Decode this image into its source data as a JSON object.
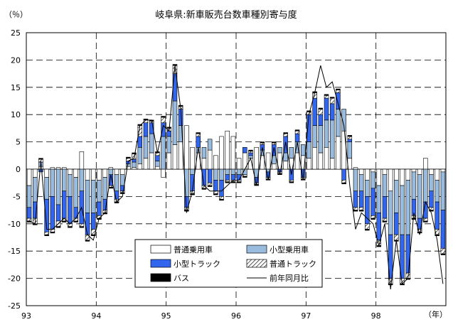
{
  "chart_data": {
    "type": "bar",
    "title": "岐阜県:新車販売台数車種別寄与度",
    "ylabel": "（％）",
    "xlabel": "（年）",
    "ylim": [
      -25,
      25
    ],
    "yticks": [
      25,
      20,
      15,
      10,
      5,
      0,
      -5,
      -10,
      -15,
      -20,
      -25
    ],
    "year_labels": [
      "93",
      "94",
      "95",
      "96",
      "97",
      "98"
    ],
    "grid": true,
    "stacked": true,
    "legend_position": "bottom-center",
    "series": [
      {
        "name": "普通乗用車",
        "key": "pass_std",
        "fill": "#ffffff",
        "pattern": "none"
      },
      {
        "name": "小型乗用車",
        "key": "pass_small",
        "fill": "#99bbdd",
        "pattern": "none"
      },
      {
        "name": "小型トラック",
        "key": "truck_small",
        "fill": "#3366ee",
        "pattern": "none"
      },
      {
        "name": "普通トラック",
        "key": "truck_std",
        "fill": "#ffffff",
        "pattern": "hatch"
      },
      {
        "name": "バス",
        "key": "bus",
        "fill": "#000000",
        "pattern": "none"
      },
      {
        "name": "前年同月比",
        "key": "yoy",
        "type": "line",
        "color": "#000000"
      }
    ],
    "months": [
      "93-01",
      "93-02",
      "93-03",
      "93-04",
      "93-05",
      "93-06",
      "93-07",
      "93-08",
      "93-09",
      "93-10",
      "93-11",
      "93-12",
      "94-01",
      "94-02",
      "94-03",
      "94-04",
      "94-05",
      "94-06",
      "94-07",
      "94-08",
      "94-09",
      "94-10",
      "94-11",
      "94-12",
      "95-01",
      "95-02",
      "95-03",
      "95-04",
      "95-05",
      "95-06",
      "95-07",
      "95-08",
      "95-09",
      "95-10",
      "95-11",
      "95-12",
      "96-01",
      "96-02",
      "96-03",
      "96-04",
      "96-05",
      "96-06",
      "96-07",
      "96-08",
      "96-09",
      "96-10",
      "96-11",
      "96-12",
      "97-01",
      "97-02",
      "97-03",
      "97-04",
      "97-05",
      "97-06",
      "97-07",
      "97-08",
      "97-09",
      "97-10",
      "97-11",
      "97-12",
      "98-01",
      "98-02",
      "98-03",
      "98-04",
      "98-05",
      "98-06",
      "98-07",
      "98-08",
      "98-09",
      "98-10",
      "98-11",
      "98-12"
    ],
    "pass_std": [
      -3,
      -1.5,
      0.5,
      -1.5,
      0.3,
      0.3,
      0.3,
      -1,
      -1.5,
      3.2,
      -2,
      -2,
      -2,
      -1.5,
      0.3,
      -1,
      -1,
      0.5,
      0.3,
      1,
      2,
      3,
      0.5,
      -1.5,
      3,
      4.5,
      5,
      8,
      4,
      3,
      2,
      3.5,
      2.5,
      6,
      7,
      6,
      2,
      3,
      2,
      4,
      2.5,
      3,
      1,
      3,
      1.5,
      2,
      3,
      2.5,
      2,
      4,
      3,
      4,
      2,
      6,
      7,
      2,
      0.3,
      -1,
      -2,
      -0.5,
      -3,
      -1,
      -4,
      -2,
      -3,
      -2,
      -0.5,
      -1,
      2,
      -1,
      -2,
      -0.5
    ],
    "pass_small": [
      -4,
      -4.5,
      0.8,
      -4,
      -5,
      -6.5,
      -4,
      -4,
      -5.5,
      -4,
      -6,
      -6,
      -4,
      -4,
      -1,
      -3,
      -2,
      0.5,
      1,
      3,
      4,
      3.5,
      1,
      6,
      3,
      8,
      3,
      -5,
      -1,
      1,
      2,
      2,
      -2,
      -2,
      -1,
      -1,
      -1,
      -1,
      0.5,
      -1.5,
      1,
      -0.5,
      1.5,
      1,
      1.5,
      2,
      2,
      2,
      3,
      4,
      5,
      5,
      7,
      5,
      4,
      3,
      -4,
      -3,
      -3,
      -3,
      -5,
      -4,
      -8,
      -6,
      -9,
      -10,
      -5,
      -8,
      -6,
      -3,
      -4,
      -7
    ],
    "truck_small": [
      -2,
      -3,
      -0.5,
      -6,
      -6,
      -3,
      -5,
      -5,
      -2,
      -6,
      -4,
      -3,
      -2.5,
      -2,
      -2,
      -1.5,
      -1,
      0.5,
      0.5,
      2,
      2.5,
      2,
      1,
      2.5,
      1,
      5,
      3,
      -2,
      -3,
      2,
      -3,
      -2.5,
      -2,
      -3,
      -1,
      -1,
      -1,
      1,
      0.5,
      -1,
      1,
      -1,
      2,
      -0.5,
      3,
      -2,
      1.5,
      -1.5,
      5,
      5,
      2,
      4,
      3,
      3,
      -2,
      0.5,
      -3,
      -3,
      -5,
      -5,
      -5,
      -4,
      -8,
      -4,
      -8,
      -7,
      -3,
      -2,
      -3,
      -3,
      -5,
      -7
    ],
    "truck_std": [
      -0.5,
      -1,
      0.5,
      -0.5,
      -0.5,
      -1,
      -0.5,
      -0.5,
      -0.5,
      -0.5,
      -1,
      -1,
      -0.5,
      -0.5,
      -0.3,
      -0.5,
      -0.3,
      0.5,
      1,
      2,
      0.5,
      0.3,
      0.5,
      1,
      0.5,
      1.5,
      0.5,
      -0.5,
      -0.5,
      0.5,
      -0.5,
      -0.5,
      -0.5,
      -0.5,
      -0.3,
      -0.3,
      -0.3,
      -0.3,
      0.3,
      -0.3,
      0.3,
      -0.3,
      0.3,
      -0.3,
      0.5,
      -0.3,
      0.5,
      -0.3,
      0.5,
      1,
      1,
      0.5,
      1,
      0.5,
      -0.5,
      0.5,
      -0.5,
      -0.5,
      -1,
      -0.5,
      -1,
      -0.5,
      -1,
      -1,
      -1,
      -1,
      -0.5,
      -0.5,
      -0.5,
      -0.5,
      -1,
      -1
    ],
    "bus": [
      -0.2,
      -0.2,
      0.2,
      -0.2,
      -0.2,
      -0.2,
      -0.2,
      -0.2,
      -0.2,
      -0.2,
      -0.2,
      -0.2,
      -0.2,
      -0.2,
      -0.2,
      -0.2,
      -0.2,
      0.2,
      0.2,
      0.2,
      0.2,
      0.2,
      0.2,
      0.2,
      0.2,
      0.2,
      0.2,
      -0.2,
      -0.2,
      0.2,
      -0.2,
      -0.2,
      -0.2,
      -0.2,
      -0.2,
      -0.2,
      -0.2,
      -0.2,
      0.2,
      -0.2,
      0.2,
      -0.2,
      0.2,
      -0.2,
      0.2,
      -0.2,
      0.2,
      -0.2,
      0.2,
      0.2,
      0.2,
      0.2,
      0.2,
      0.2,
      -0.2,
      0.2,
      -0.2,
      -0.2,
      -0.2,
      -0.2,
      -0.2,
      -0.2,
      -0.2,
      -0.2,
      -0.2,
      -0.2,
      -0.2,
      -0.2,
      -0.2,
      -0.2,
      -0.2,
      -0.2
    ],
    "yoy": [
      -9.5,
      -10,
      1.5,
      -11,
      -11,
      -10,
      -9,
      -10,
      -9,
      -7,
      -12,
      -13,
      -9,
      -8,
      -1,
      -6,
      -5,
      1.5,
      2,
      8,
      9,
      9,
      3,
      8,
      7,
      19,
      11,
      -8,
      -4,
      4,
      -3,
      -4,
      -4,
      -4,
      -3,
      -2,
      -2,
      0,
      2,
      -3,
      4,
      -2,
      4,
      -1,
      5,
      -1,
      5,
      -2,
      10,
      14,
      19,
      15,
      16,
      12,
      8,
      -3,
      -11,
      -8,
      -9,
      -10,
      -14,
      -10,
      -22,
      -13,
      -21,
      -20,
      -8,
      -12,
      -6,
      -8,
      -13,
      -21
    ]
  }
}
